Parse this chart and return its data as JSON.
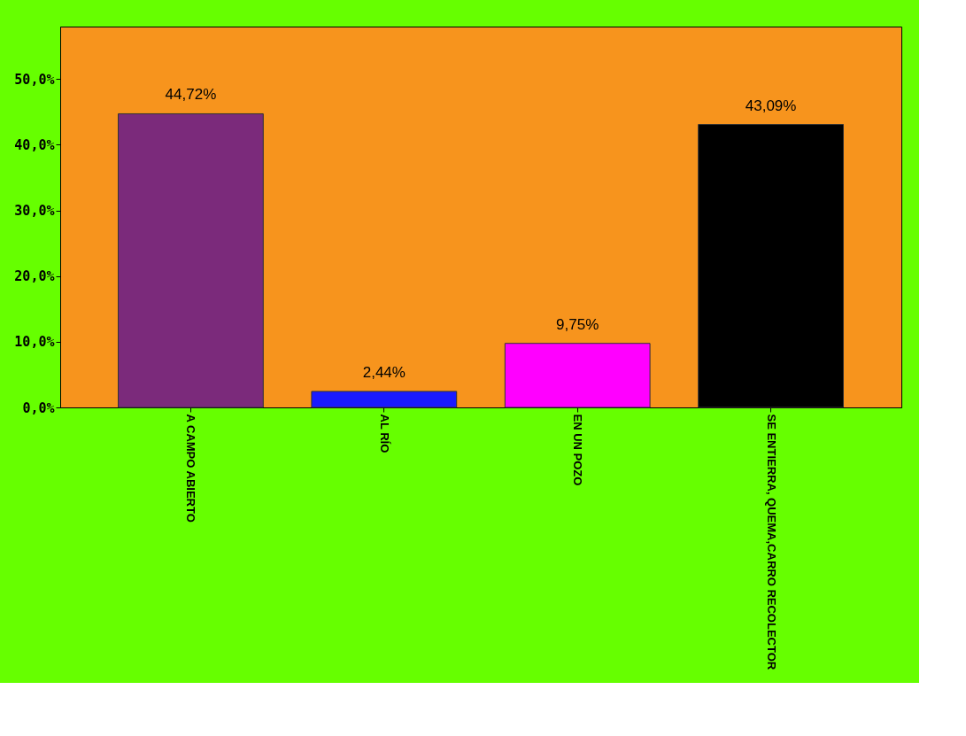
{
  "chart_data": {
    "type": "bar",
    "categories": [
      "A CAMPO ABIERTO",
      "AL RÍO",
      "EN UN POZO",
      "SE ENTIERRA, QUEMA,CARRO RECOLECTOR"
    ],
    "values": [
      44.72,
      2.44,
      9.75,
      43.09
    ],
    "colors": [
      "#7b2a7b",
      "#1a1aff",
      "#ff00ff",
      "#000000"
    ],
    "value_labels": [
      "44,72%",
      "2,44%",
      "9,75%",
      "43,09%"
    ],
    "ylim": [
      0,
      58
    ],
    "yticks": [
      {
        "value": 0,
        "label": "0,0%"
      },
      {
        "value": 10,
        "label": "10,0%"
      },
      {
        "value": 20,
        "label": "20,0%"
      },
      {
        "value": 30,
        "label": "30,0%"
      },
      {
        "value": 40,
        "label": "40,0%"
      },
      {
        "value": 50,
        "label": "50,0%"
      }
    ],
    "grid": false,
    "legend": false
  }
}
